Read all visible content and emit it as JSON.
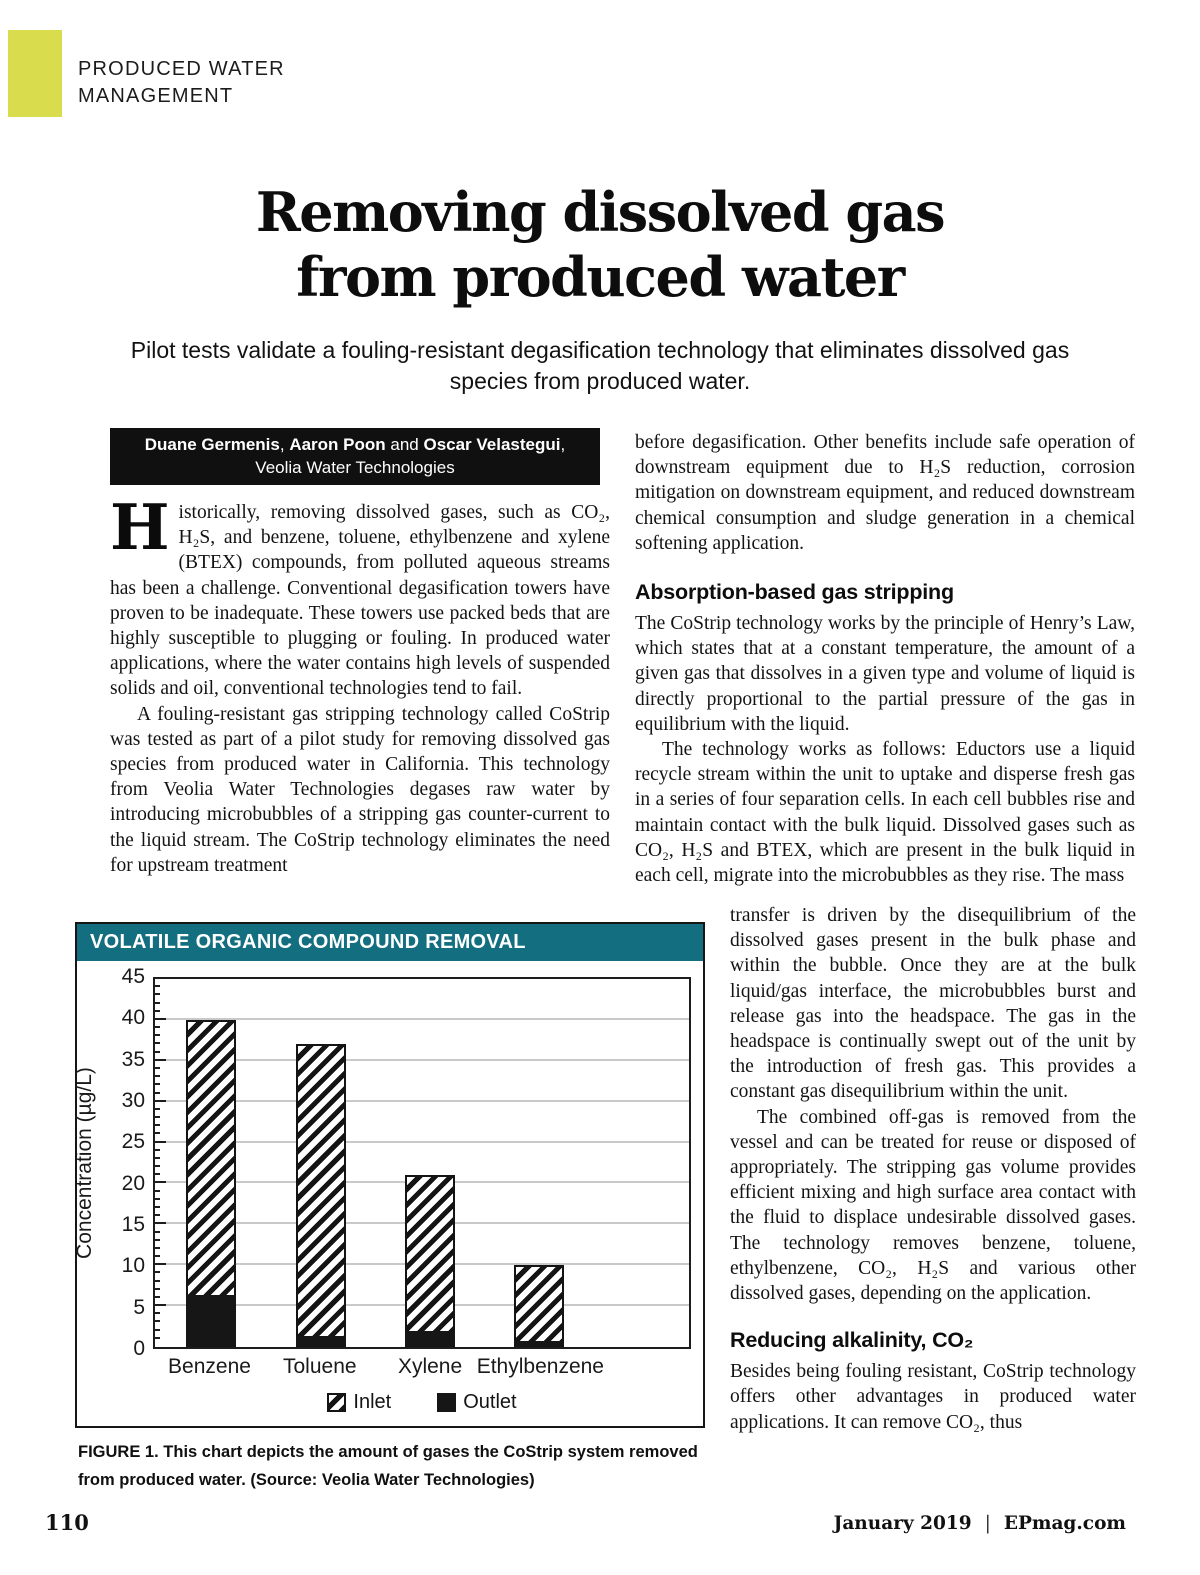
{
  "department": {
    "line1": "PRODUCED WATER",
    "line2": "MANAGEMENT"
  },
  "title_line1": "Removing dissolved gas",
  "title_line2": "from produced water",
  "subtitle": "Pilot tests validate a fouling-resistant degasification technology that eliminates dissolved gas species from produced water.",
  "byline": {
    "names": [
      "Duane Germenis",
      "Aaron Poon",
      "Oscar Velastegui"
    ],
    "sep1": ", ",
    "sep2": " and ",
    "trailing_comma": ",",
    "affiliation": "Veolia Water Technologies"
  },
  "article": {
    "dropcap": "H",
    "p1": "istorically, removing dissolved gases, such as CO₂, H₂S, and benzene, toluene, ethylbenzene and xylene (BTEX) compounds, from polluted aqueous streams has been a challenge. Conventional degasification towers have proven to be inadequate. These towers use packed beds that are highly susceptible to plugging or fouling. In produced water applications, where the water contains high levels of suspended solids and oil, conventional technologies tend to fail.",
    "p2": "A fouling-resistant gas stripping technology called CoStrip was tested as part of a pilot study for removing dissolved gas species from produced water in California. This technology from Veolia Water Technologies degases raw water by introducing microbubbles of a stripping gas counter-current to the liquid stream. The CoStrip technology eliminates the need for upstream treatment",
    "p3": "before degasification. Other benefits include safe operation of downstream equipment due to H₂S reduction, corrosion mitigation on downstream equipment, and reduced downstream chemical consumption and sludge generation in a chemical softening application.",
    "heading1": "Absorption-based gas stripping",
    "p4": "The CoStrip technology works by the principle of Henry’s Law, which states that at a constant temperature, the amount of a given gas that dissolves in a given type and volume of liquid is directly proportional to the partial pressure of the gas in equilibrium with the liquid.",
    "p5": "The technology works as follows: Eductors use a liquid recycle stream within the unit to uptake and disperse fresh gas in a series of four separation cells. In each cell bubbles rise and maintain contact with the bulk liquid. Dissolved gases such as CO₂, H₂S and BTEX, which are present in the bulk liquid in each cell, migrate into the microbubbles as they rise. The mass",
    "p6": "transfer is driven by the disequilibrium of the dissolved gases present in the bulk phase and within the bubble. Once they are at the bulk liquid/gas interface, the microbubbles burst and release gas into the headspace. The gas in the headspace is continually swept out of the unit by the introduction of fresh gas. This provides a constant gas disequilibrium within the unit.",
    "p7": "The combined off-gas is removed from the vessel and can be treated for reuse or disposed of appropriately. The stripping gas volume provides efficient mixing and high surface area contact with the fluid to displace undesirable dissolved gases. The technology removes benzene, toluene, ethylbenzene, CO₂, H₂S and various other dissolved gases, depending on the application.",
    "heading2": "Reducing alkalinity, CO₂",
    "p8": "Besides being fouling resistant, CoStrip technology offers other advantages in produced water applications. It can remove CO₂, thus"
  },
  "figure": {
    "caption_label": "FIGURE 1.",
    "caption_text": "This chart depicts the amount of gases the CoStrip system removed from produced water. (Source: Veolia Water Technologies)"
  },
  "chart_data": {
    "type": "bar",
    "title": "VOLATILE ORGANIC COMPOUND REMOVAL",
    "categories": [
      "Benzene",
      "Toluene",
      "Xylene",
      "Ethylbenzene"
    ],
    "series": [
      {
        "name": "Inlet",
        "style": "hatched",
        "values": [
          40,
          37,
          21,
          10
        ]
      },
      {
        "name": "Outlet",
        "style": "solid-black",
        "values": [
          6.3,
          1.4,
          2.0,
          0.7
        ]
      }
    ],
    "xlabel": "",
    "ylabel": "Concentration (µg/L)",
    "ylim": [
      0,
      45
    ],
    "ytick_step": 5,
    "minor_tick_step": 1,
    "grid": true,
    "legend_position": "bottom"
  },
  "footer": {
    "page_number": "110",
    "issue": "January 2019",
    "separator": "|",
    "site": "EPmag.com"
  },
  "colors": {
    "accent_yellow": "#d9dc4d",
    "accent_teal": "#136e80",
    "ink": "#111111"
  }
}
